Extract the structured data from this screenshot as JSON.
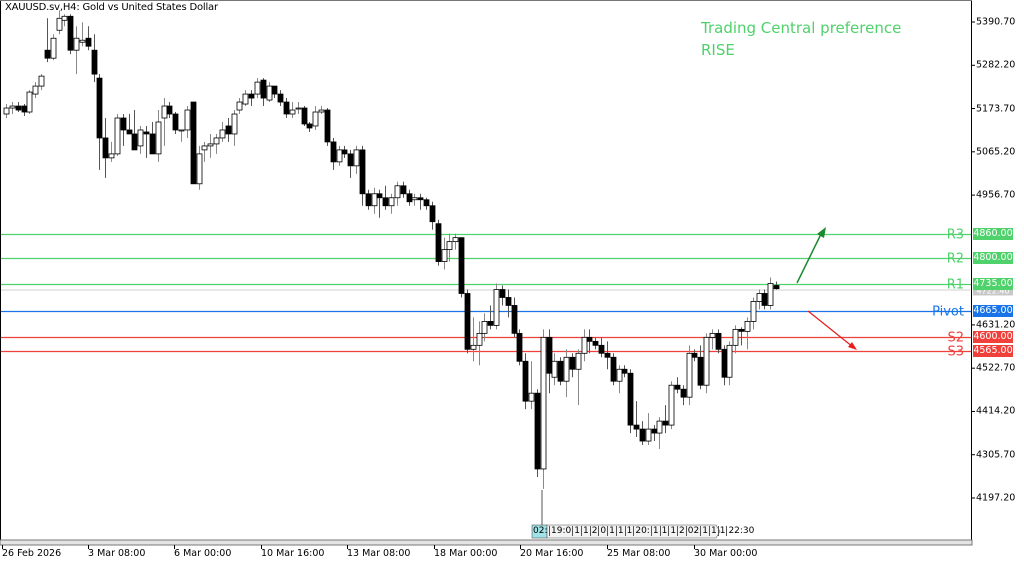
{
  "header": {
    "title": "XAUUSD.sv,H4:  Gold vs United States Dollar"
  },
  "annotation": {
    "line1": "Trading Central preference",
    "line2": "RISE"
  },
  "colors": {
    "resistance": "#4fd16b",
    "pivot": "#1874e8",
    "support": "#f0403c",
    "arrow_up": "#1a8a2e",
    "arrow_down": "#e81c1c",
    "current_tag": "#c8c8c8",
    "axis": "#000000"
  },
  "chart_data": {
    "type": "candlestick",
    "title": "XAUUSD.sv,H4: Gold vs United States Dollar",
    "xlabel": "",
    "ylabel": "",
    "ylim": [
      4150,
      5430
    ],
    "y_ticks": [
      "5390.70",
      "5282.20",
      "5173.70",
      "5065.20",
      "4956.70",
      "4848.20",
      "4739.70",
      "4631.20",
      "4522.70",
      "4414.20",
      "4305.70",
      "4197.20"
    ],
    "x_ticks": [
      "26 Feb 2026",
      "3 Mar 08:00",
      "6 Mar 00:00",
      "10 Mar 16:00",
      "13 Mar 08:00",
      "18 Mar 00:00",
      "20 Mar 16:00",
      "25 Mar 08:00",
      "30 Mar 00:00"
    ],
    "levels": [
      {
        "name": "R3",
        "value": 4860.0,
        "label": "4860.00",
        "kind": "resistance"
      },
      {
        "name": "R2",
        "value": 4800.0,
        "label": "4800.00",
        "kind": "resistance"
      },
      {
        "name": "R1",
        "value": 4735.0,
        "label": "4735.00",
        "kind": "resistance"
      },
      {
        "name": "Pivot",
        "value": 4665.0,
        "label": "4665.00",
        "kind": "pivot"
      },
      {
        "name": "S2",
        "value": 4600.0,
        "label": "4600.00",
        "kind": "support"
      },
      {
        "name": "S3",
        "value": 4565.0,
        "label": "4565.00",
        "kind": "support"
      }
    ],
    "current_price": 4722.4,
    "preference": "RISE",
    "candles": [
      [
        5160,
        5185,
        5150,
        5175
      ],
      [
        5175,
        5190,
        5160,
        5180
      ],
      [
        5180,
        5190,
        5165,
        5170
      ],
      [
        5180,
        5185,
        5155,
        5165
      ],
      [
        5165,
        5220,
        5160,
        5215
      ],
      [
        5210,
        5240,
        5200,
        5230
      ],
      [
        5230,
        5260,
        5220,
        5255
      ],
      [
        5320,
        5400,
        5290,
        5300
      ],
      [
        5300,
        5360,
        5295,
        5350
      ],
      [
        5370,
        5420,
        5360,
        5400
      ],
      [
        5395,
        5410,
        5380,
        5405
      ],
      [
        5405,
        5410,
        5310,
        5320
      ],
      [
        5320,
        5380,
        5260,
        5350
      ],
      [
        5340,
        5390,
        5330,
        5345
      ],
      [
        5350,
        5380,
        5320,
        5330
      ],
      [
        5320,
        5360,
        5240,
        5260
      ],
      [
        5250,
        5260,
        5020,
        5100
      ],
      [
        5100,
        5150,
        5000,
        5050
      ],
      [
        5050,
        5090,
        5040,
        5060
      ],
      [
        5060,
        5160,
        5055,
        5150
      ],
      [
        5150,
        5160,
        5080,
        5120
      ],
      [
        5120,
        5160,
        5110,
        5110
      ],
      [
        5110,
        5170,
        5070,
        5070
      ],
      [
        5080,
        5130,
        5060,
        5120
      ],
      [
        5115,
        5130,
        5050,
        5110
      ],
      [
        5110,
        5140,
        5060,
        5060
      ],
      [
        5060,
        5170,
        5040,
        5140
      ],
      [
        5150,
        5200,
        5080,
        5180
      ],
      [
        5180,
        5190,
        5150,
        5160
      ],
      [
        5160,
        5165,
        5110,
        5120
      ],
      [
        5120,
        5120,
        5090,
        5120
      ],
      [
        5120,
        5180,
        5100,
        5170
      ],
      [
        5190,
        5190,
        4985,
        4985
      ],
      [
        4985,
        5080,
        4970,
        5060
      ],
      [
        5070,
        5090,
        5040,
        5080
      ],
      [
        5080,
        5110,
        5050,
        5085
      ],
      [
        5085,
        5110,
        5060,
        5100
      ],
      [
        5100,
        5140,
        5090,
        5120
      ],
      [
        5130,
        5150,
        5090,
        5110
      ],
      [
        5110,
        5170,
        5080,
        5160
      ],
      [
        5170,
        5200,
        5160,
        5190
      ],
      [
        5185,
        5220,
        5180,
        5210
      ],
      [
        5210,
        5220,
        5180,
        5200
      ],
      [
        5210,
        5250,
        5200,
        5240
      ],
      [
        5245,
        5250,
        5180,
        5200
      ],
      [
        5195,
        5240,
        5190,
        5230
      ],
      [
        5230,
        5230,
        5200,
        5210
      ],
      [
        5210,
        5220,
        5180,
        5190
      ],
      [
        5190,
        5200,
        5150,
        5160
      ],
      [
        5160,
        5190,
        5150,
        5170
      ],
      [
        5175,
        5190,
        5160,
        5175
      ],
      [
        5175,
        5180,
        5130,
        5135
      ],
      [
        5135,
        5140,
        5115,
        5125
      ],
      [
        5130,
        5180,
        5120,
        5165
      ],
      [
        5165,
        5180,
        5160,
        5170
      ],
      [
        5170,
        5175,
        5080,
        5090
      ],
      [
        5090,
        5100,
        5020,
        5040
      ],
      [
        5040,
        5080,
        5030,
        5070
      ],
      [
        5070,
        5080,
        5050,
        5060
      ],
      [
        5060,
        5070,
        5000,
        5030
      ],
      [
        5030,
        5080,
        5010,
        5070
      ],
      [
        5070,
        5080,
        4930,
        4960
      ],
      [
        4960,
        4970,
        4920,
        4930
      ],
      [
        4930,
        4975,
        4910,
        4960
      ],
      [
        4960,
        4970,
        4900,
        4950
      ],
      [
        4950,
        4980,
        4920,
        4930
      ],
      [
        4930,
        4960,
        4910,
        4950
      ],
      [
        4950,
        4990,
        4930,
        4980
      ],
      [
        4980,
        4990,
        4950,
        4960
      ],
      [
        4960,
        4970,
        4930,
        4940
      ],
      [
        4945,
        4960,
        4930,
        4950
      ],
      [
        4950,
        4960,
        4920,
        4945
      ],
      [
        4945,
        4950,
        4920,
        4930
      ],
      [
        4930,
        4940,
        4870,
        4890
      ],
      [
        4885,
        4895,
        4780,
        4790
      ],
      [
        4790,
        4850,
        4770,
        4820
      ],
      [
        4820,
        4860,
        4790,
        4840
      ],
      [
        4840,
        4860,
        4820,
        4850
      ],
      [
        4850,
        4850,
        4700,
        4710
      ],
      [
        4710,
        4720,
        4560,
        4570
      ],
      [
        4570,
        4650,
        4540,
        4580
      ],
      [
        4580,
        4640,
        4530,
        4610
      ],
      [
        4610,
        4660,
        4590,
        4640
      ],
      [
        4640,
        4680,
        4620,
        4630
      ],
      [
        4630,
        4735,
        4620,
        4720
      ],
      [
        4720,
        4730,
        4680,
        4700
      ],
      [
        4700,
        4720,
        4650,
        4680
      ],
      [
        4680,
        4700,
        4600,
        4610
      ],
      [
        4610,
        4620,
        4530,
        4540
      ],
      [
        4540,
        4560,
        4420,
        4440
      ],
      [
        4440,
        4540,
        4420,
        4460
      ],
      [
        4460,
        4470,
        4250,
        4270
      ],
      [
        4270,
        4620,
        4220,
        4600
      ],
      [
        4600,
        4620,
        4460,
        4510
      ],
      [
        4500,
        4560,
        4480,
        4540
      ],
      [
        4540,
        4550,
        4480,
        4490
      ],
      [
        4490,
        4570,
        4450,
        4550
      ],
      [
        4550,
        4560,
        4500,
        4520
      ],
      [
        4520,
        4570,
        4430,
        4560
      ],
      [
        4560,
        4620,
        4540,
        4600
      ],
      [
        4600,
        4620,
        4560,
        4590
      ],
      [
        4590,
        4600,
        4570,
        4580
      ],
      [
        4580,
        4600,
        4550,
        4560
      ],
      [
        4560,
        4590,
        4520,
        4550
      ],
      [
        4550,
        4560,
        4480,
        4490
      ],
      [
        4490,
        4530,
        4460,
        4520
      ],
      [
        4520,
        4530,
        4500,
        4510
      ],
      [
        4510,
        4520,
        4360,
        4380
      ],
      [
        4380,
        4440,
        4350,
        4370
      ],
      [
        4370,
        4390,
        4330,
        4340
      ],
      [
        4340,
        4410,
        4330,
        4370
      ],
      [
        4370,
        4380,
        4340,
        4360
      ],
      [
        4360,
        4400,
        4320,
        4390
      ],
      [
        4390,
        4430,
        4360,
        4380
      ],
      [
        4380,
        4490,
        4370,
        4480
      ],
      [
        4480,
        4500,
        4460,
        4470
      ],
      [
        4470,
        4480,
        4430,
        4450
      ],
      [
        4450,
        4580,
        4430,
        4560
      ],
      [
        4560,
        4570,
        4540,
        4550
      ],
      [
        4550,
        4580,
        4470,
        4480
      ],
      [
        4480,
        4610,
        4460,
        4600
      ],
      [
        4600,
        4620,
        4570,
        4610
      ],
      [
        4610,
        4620,
        4560,
        4570
      ],
      [
        4570,
        4580,
        4480,
        4500
      ],
      [
        4500,
        4590,
        4480,
        4580
      ],
      [
        4580,
        4630,
        4560,
        4620
      ],
      [
        4620,
        4625,
        4580,
        4615
      ],
      [
        4615,
        4650,
        4570,
        4640
      ],
      [
        4640,
        4700,
        4620,
        4690
      ],
      [
        4690,
        4720,
        4670,
        4710
      ],
      [
        4710,
        4720,
        4670,
        4680
      ],
      [
        4680,
        4750,
        4670,
        4735
      ],
      [
        4730,
        4740,
        4720,
        4722
      ]
    ]
  },
  "time_axis": {
    "scroll_marker": "02:",
    "bar_labels": [
      "19:0",
      "1",
      "1",
      "2",
      "0",
      "1",
      "1",
      "1",
      "20:",
      "1",
      "1",
      "1",
      "2",
      "02",
      "1",
      "1",
      "1",
      "22:30"
    ]
  }
}
